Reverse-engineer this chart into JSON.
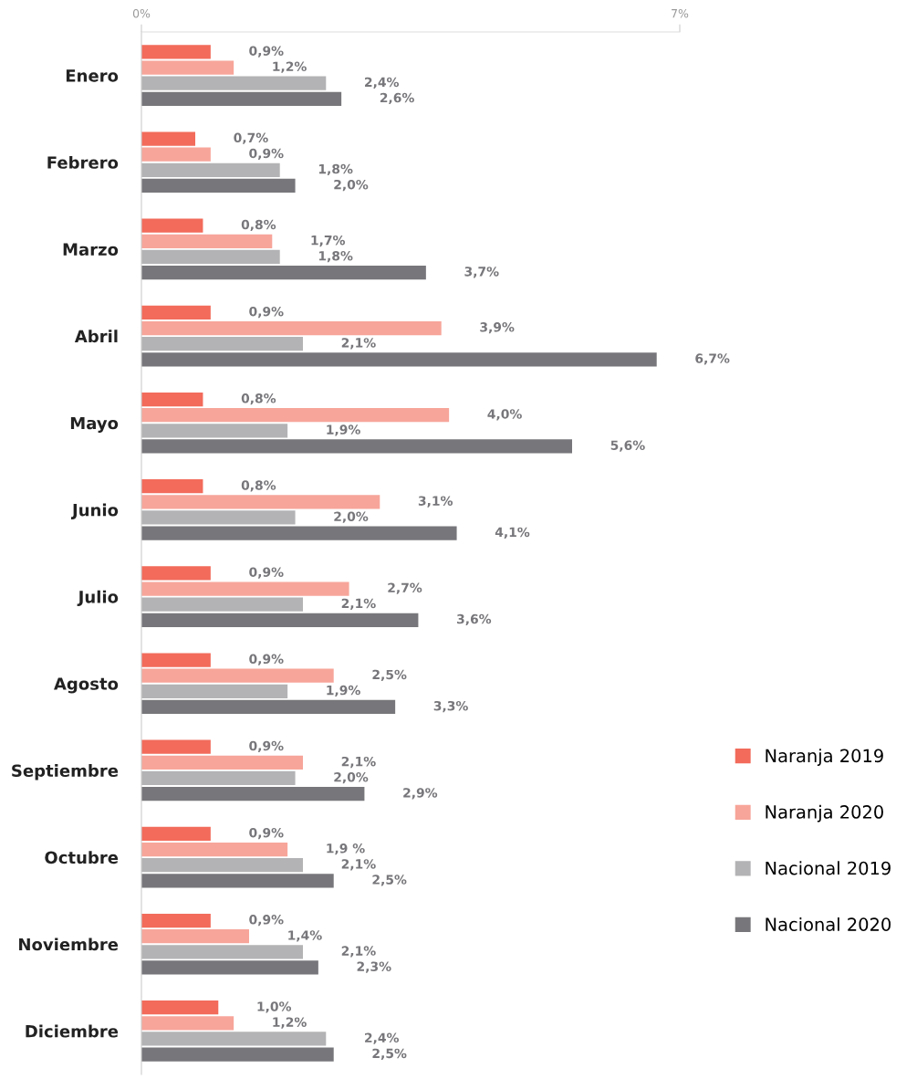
{
  "chart_data": {
    "type": "bar",
    "orientation": "horizontal",
    "categories": [
      "Enero",
      "Febrero",
      "Marzo",
      "Abril",
      "Mayo",
      "Junio",
      "Julio",
      "Agosto",
      "Septiembre",
      "Octubre",
      "Noviembre",
      "Diciembre"
    ],
    "series": [
      {
        "name": "Naranja 2019",
        "color": "#f26b5b",
        "values": [
          0.9,
          0.7,
          0.8,
          0.9,
          0.8,
          0.8,
          0.9,
          0.9,
          0.9,
          0.9,
          0.9,
          1.0
        ],
        "value_labels": [
          "0,9%",
          "0,7%",
          "0,8%",
          "0,9%",
          "0,8%",
          "0,8%",
          "0,9%",
          "0,9%",
          "0,9%",
          "0,9%",
          "0,9%",
          "1,0%"
        ]
      },
      {
        "name": "Naranja 2020",
        "color": "#f7a59a",
        "values": [
          1.2,
          0.9,
          1.7,
          3.9,
          4.0,
          3.1,
          2.7,
          2.5,
          2.1,
          1.9,
          1.4,
          1.2
        ],
        "value_labels": [
          "1,2%",
          "0,9%",
          "1,7%",
          "3,9%",
          "4,0%",
          "3,1%",
          "2,7%",
          "2,5%",
          "2,1%",
          "1,9 %",
          "1,4%",
          "1,2%"
        ]
      },
      {
        "name": "Nacional 2019",
        "color": "#b3b3b5",
        "values": [
          2.4,
          1.8,
          1.8,
          2.1,
          1.9,
          2.0,
          2.1,
          1.9,
          2.0,
          2.1,
          2.1,
          2.4
        ],
        "value_labels": [
          "2,4%",
          "1,8%",
          "1,8%",
          "2,1%",
          "1,9%",
          "2,0%",
          "2,1%",
          "1,9%",
          "2,0%",
          "2,1%",
          "2,1%",
          "2,4%"
        ]
      },
      {
        "name": "Nacional 2020",
        "color": "#77777b",
        "values": [
          2.6,
          2.0,
          3.7,
          6.7,
          5.6,
          4.1,
          3.6,
          3.3,
          2.9,
          2.5,
          2.3,
          2.5
        ],
        "value_labels": [
          "2,6%",
          "2,0%",
          "3,7%",
          "6,7%",
          "5,6%",
          "4,1%",
          "3,6%",
          "3,3%",
          "2,9%",
          "2,5%",
          "2,3%",
          "2,5%"
        ]
      }
    ],
    "xlim": [
      0,
      7
    ],
    "xticks": [
      {
        "value": 0,
        "label": "0%"
      },
      {
        "value": 7,
        "label": "7%"
      }
    ],
    "legend": "right"
  }
}
